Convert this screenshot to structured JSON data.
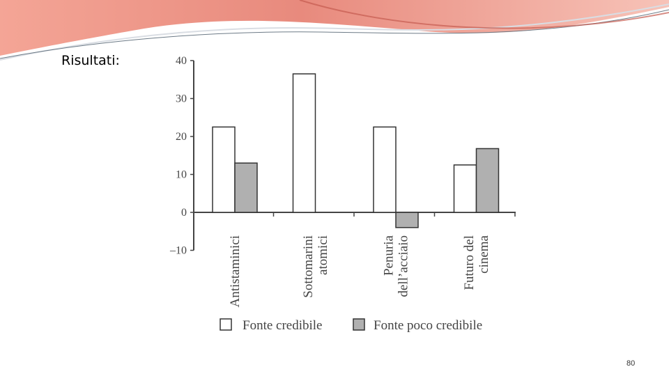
{
  "slide": {
    "title": "Risultati:",
    "page_number": "80"
  },
  "colors": {
    "banner_light": "#f4b5a6",
    "banner_dark": "#e2776a",
    "series_credible": "#ffffff",
    "series_not_credible": "#b0b0b0",
    "axis": "#444444"
  },
  "chart_data": {
    "type": "bar",
    "categories": [
      [
        "Antistaminici"
      ],
      [
        "Sottomarini",
        "atomici"
      ],
      [
        "Penuria",
        "dell’acciaio"
      ],
      [
        "Futuro del",
        "cinema"
      ]
    ],
    "series": [
      {
        "name": "Fonte credibile",
        "values": [
          22.5,
          36.5,
          22.5,
          12.5
        ]
      },
      {
        "name": "Fonte poco credibile",
        "values": [
          13,
          0,
          -4,
          16.8
        ]
      }
    ],
    "ylim": [
      -10,
      40
    ],
    "yticks": [
      "–10",
      "0",
      "10",
      "20",
      "30",
      "40"
    ],
    "ytick_values": [
      -10,
      0,
      10,
      20,
      30,
      40
    ],
    "legend_position": "bottom",
    "grid": false
  }
}
